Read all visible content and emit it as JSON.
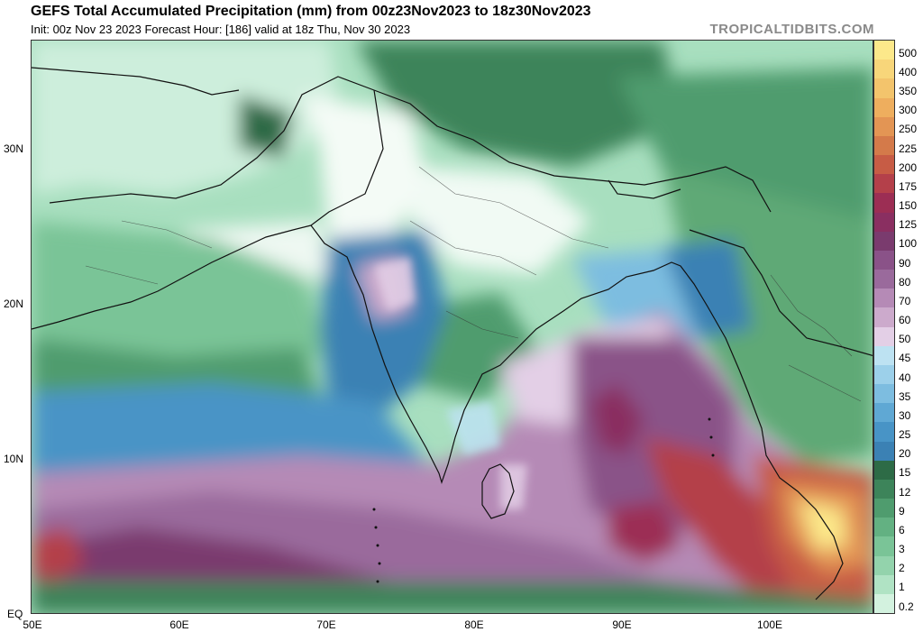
{
  "header": {
    "title": "GEFS Total Accumulated Precipitation (mm) from 00z23Nov2023 to 18z30Nov2023",
    "subtitle": "Init: 00z Nov 23 2023   Forecast Hour: [186]   valid at 18z Thu, Nov 30 2023",
    "brand": "TROPICALTIDBITS.COM"
  },
  "map": {
    "lat_labels": [
      "30N",
      "20N",
      "10N",
      "EQ"
    ],
    "lon_labels": [
      "50E",
      "60E",
      "70E",
      "80E",
      "90E",
      "100E"
    ],
    "lon_range": [
      50,
      107
    ],
    "lat_range": [
      0,
      37
    ]
  },
  "colorbar": {
    "labels": [
      "500",
      "400",
      "350",
      "300",
      "250",
      "225",
      "200",
      "175",
      "150",
      "125",
      "100",
      "90",
      "80",
      "70",
      "60",
      "50",
      "45",
      "40",
      "35",
      "30",
      "25",
      "20",
      "15",
      "12",
      "9",
      "6",
      "3",
      "2",
      "1",
      "0.2"
    ],
    "colors": [
      "#fce88a",
      "#f8d67a",
      "#f3c46c",
      "#eeae5e",
      "#e39554",
      "#d47a4a",
      "#c75c45",
      "#b4404a",
      "#9c2e54",
      "#8a2f61",
      "#7a3b6e",
      "#8a5288",
      "#9a6a9c",
      "#b58ab6",
      "#ccaacc",
      "#e3cfe6",
      "#bde2f2",
      "#9cd0ea",
      "#7dbde0",
      "#5fa8d4",
      "#4894c6",
      "#3b81b4",
      "#2d6b46",
      "#3d845a",
      "#4f9c6e",
      "#63b182",
      "#7ac497",
      "#93d3ac",
      "#b0e3c4",
      "#d3f2df"
    ]
  }
}
